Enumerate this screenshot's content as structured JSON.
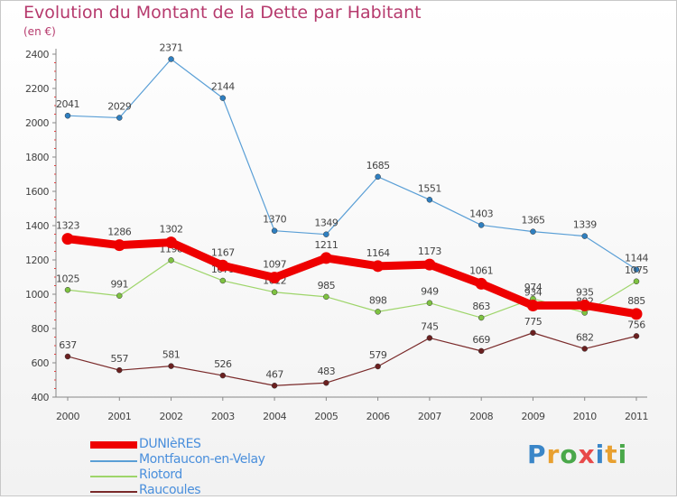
{
  "chart_data": {
    "type": "line",
    "title": "Evolution du Montant de la Dette par Habitant",
    "subtitle": "(en €)",
    "xlabel": "",
    "ylabel": "",
    "ylim": [
      400,
      2400
    ],
    "yticks": [
      "400",
      "600",
      "800",
      "1000",
      "1200",
      "1400",
      "1600",
      "1800",
      "2000",
      "2200",
      "2400"
    ],
    "x": [
      "2000",
      "2001",
      "2002",
      "2003",
      "2004",
      "2005",
      "2006",
      "2007",
      "2008",
      "2009",
      "2010",
      "2011"
    ],
    "series": [
      {
        "name": "DUNIèRES",
        "color": "#ee0000",
        "emphasis": true,
        "values": [
          1323,
          1286,
          1302,
          1167,
          1097,
          1211,
          1164,
          1173,
          1061,
          934,
          935,
          885
        ]
      },
      {
        "name": "Montfaucon-en-Velay",
        "color": "#5a9fd6",
        "marker": "#2f7fc0",
        "values": [
          2041,
          2029,
          2371,
          2144,
          1370,
          1349,
          1685,
          1551,
          1403,
          1365,
          1339,
          1144
        ]
      },
      {
        "name": "Riotord",
        "color": "#9ed56a",
        "marker": "#7ec241",
        "values": [
          1025,
          991,
          1198,
          1079,
          1012,
          985,
          898,
          949,
          863,
          974,
          892,
          1075
        ]
      },
      {
        "name": "Raucoules",
        "color": "#7a2a2a",
        "marker": "#6b2020",
        "values": [
          637,
          557,
          581,
          526,
          467,
          483,
          579,
          745,
          669,
          775,
          682,
          756
        ]
      }
    ],
    "legend_position": "bottom-left",
    "grid": false
  },
  "logo": {
    "letters": [
      "P",
      "r",
      "o",
      "x",
      "i",
      "t",
      "i"
    ],
    "colors": [
      "#3a86c8",
      "#e8a030",
      "#4aa84a",
      "#e84a4a",
      "#3a86c8",
      "#e8a030",
      "#4aa84a"
    ]
  }
}
